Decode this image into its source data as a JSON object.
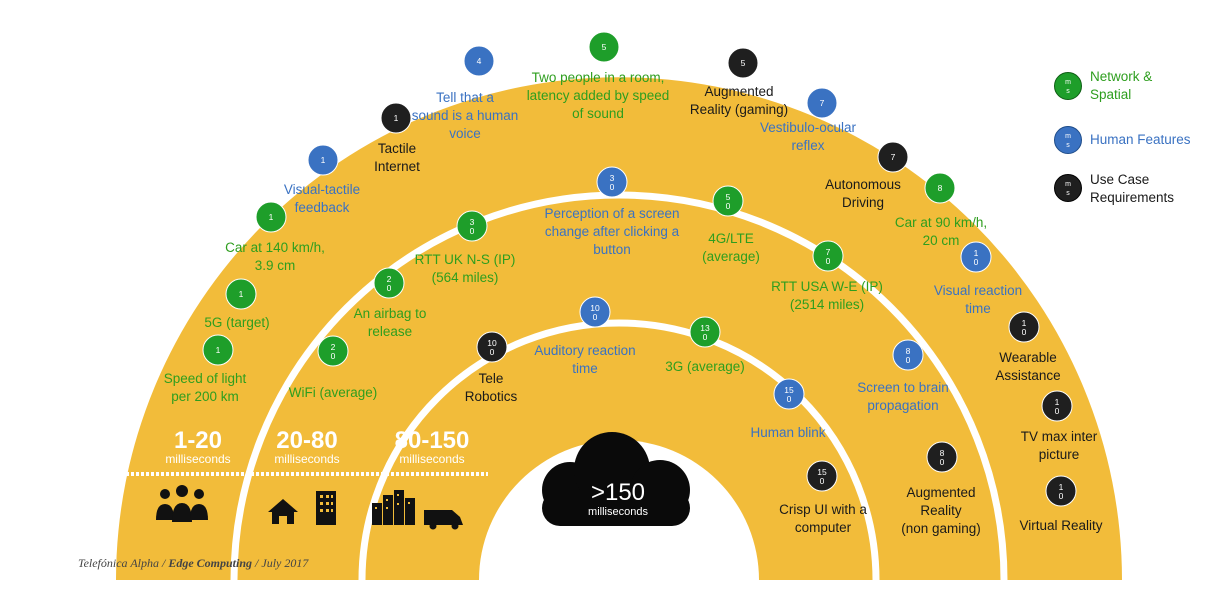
{
  "colors": {
    "arc": "#F2BC3A",
    "network": "#1E9E2A",
    "human": "#3A72C2",
    "usecase": "#1F1F1F",
    "network_text": "#2E9E1E",
    "human_text": "#3A72C2",
    "usecase_text": "#1A1A1A"
  },
  "bands": [
    {
      "range": "1-20",
      "unit": "milliseconds",
      "icons": [
        "people-icon"
      ]
    },
    {
      "range": "20-80",
      "unit": "milliseconds",
      "icons": [
        "home-icon",
        "office-building-icon"
      ]
    },
    {
      "range": "80-150",
      "unit": "milliseconds",
      "icons": [
        "city-icon",
        "van-icon"
      ]
    }
  ],
  "center": {
    "value": ">150",
    "unit": "milliseconds"
  },
  "legend": [
    {
      "category": "network",
      "label": "Network & Spatial",
      "dot_text": "m s"
    },
    {
      "category": "human",
      "label": "Human Features",
      "dot_text": "m s"
    },
    {
      "category": "usecase",
      "label": "Use Case Requirements",
      "dot_text": "m s"
    }
  ],
  "items": [
    {
      "id": "speed-of-light",
      "value": "1",
      "label": "Speed of light per 200 km",
      "category": "network"
    },
    {
      "id": "5g-target",
      "value": "1",
      "label": "5G (target)",
      "category": "network"
    },
    {
      "id": "car-140",
      "value": "1",
      "label": "Car at 140 km/h, 3.9 cm",
      "category": "network"
    },
    {
      "id": "visual-tactile",
      "value": "1",
      "label": "Visual-tactile feedback",
      "category": "human"
    },
    {
      "id": "tactile-internet",
      "value": "1",
      "label": "Tactile Internet",
      "category": "usecase"
    },
    {
      "id": "human-voice",
      "value": "4",
      "label": "Tell that a sound is a human voice",
      "category": "human"
    },
    {
      "id": "two-people",
      "value": "5",
      "label": "Two people in a room, latency added by speed of sound",
      "category": "network"
    },
    {
      "id": "ar-gaming",
      "value": "5",
      "label": "Augmented Reality (gaming)",
      "category": "usecase"
    },
    {
      "id": "vestibulo",
      "value": "7",
      "label": "Vestibulo-ocular reflex",
      "category": "human"
    },
    {
      "id": "autonomous",
      "value": "7",
      "label": "Autonomous Driving",
      "category": "usecase"
    },
    {
      "id": "car-90",
      "value": "8",
      "label": "Car at 90 km/h, 20 cm",
      "category": "network"
    },
    {
      "id": "wifi",
      "value": "20",
      "label": "WiFi (average)",
      "category": "network"
    },
    {
      "id": "airbag",
      "value": "20",
      "label": "An airbag to release",
      "category": "network"
    },
    {
      "id": "rtt-uk",
      "value": "30",
      "label": "RTT UK N-S (IP) (564 miles)",
      "category": "network"
    },
    {
      "id": "screen-change",
      "value": "30",
      "label": "Perception of a screen change after clicking a button",
      "category": "human"
    },
    {
      "id": "4g",
      "value": "50",
      "label": "4G/LTE (average)",
      "category": "network"
    },
    {
      "id": "rtt-usa",
      "value": "70",
      "label": "RTT USA W-E (IP) (2514 miles)",
      "category": "network"
    },
    {
      "id": "visual-reaction",
      "value": "10",
      "label": "Visual reaction time",
      "category": "human"
    },
    {
      "id": "wearable",
      "value": "10",
      "label": "Wearable Assistance",
      "category": "usecase"
    },
    {
      "id": "tv-max",
      "value": "10",
      "label": "TV max inter picture",
      "category": "usecase"
    },
    {
      "id": "virtual-reality",
      "value": "10",
      "label": "Virtual Reality",
      "category": "usecase"
    },
    {
      "id": "telerobotics",
      "value": "100",
      "label": "Tele Robotics",
      "category": "usecase"
    },
    {
      "id": "auditory",
      "value": "100",
      "label": "Auditory reaction time",
      "category": "human"
    },
    {
      "id": "3g",
      "value": "130",
      "label": "3G (average)",
      "category": "network"
    },
    {
      "id": "screen-brain",
      "value": "80",
      "label": "Screen to brain propagation",
      "category": "human"
    },
    {
      "id": "human-blink",
      "value": "150",
      "label": "Human blink",
      "category": "human"
    },
    {
      "id": "ar-nongaming",
      "value": "80",
      "label": "Augmented Reality (non gaming)",
      "category": "usecase"
    },
    {
      "id": "crisp-ui",
      "value": "150",
      "label": "Crisp UI with a computer",
      "category": "usecase"
    }
  ],
  "footer": {
    "company": "Telefónica Alpha",
    "sep1": "/",
    "topic": "Edge Computing",
    "sep2": "/",
    "date": "July 2017"
  }
}
